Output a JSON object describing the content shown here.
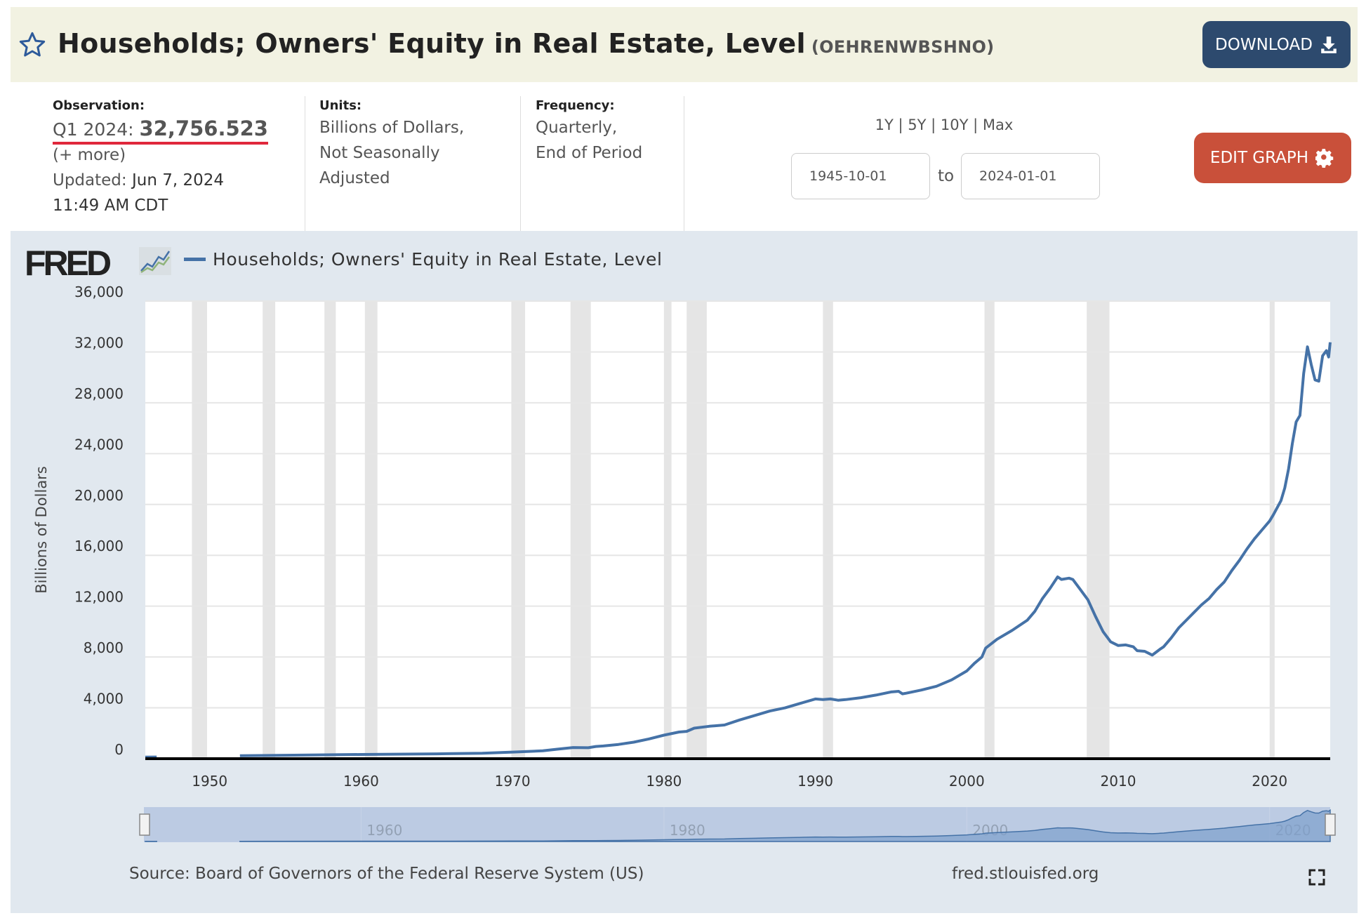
{
  "header": {
    "title": "Households; Owners' Equity in Real Estate, Level",
    "series_id": "(OEHRENWBSHNO)",
    "download_label": "DOWNLOAD"
  },
  "observation": {
    "label": "Observation:",
    "period": "Q1 2024:",
    "value": "32,756.523",
    "more": "(+ more)",
    "updated_label": "Updated:",
    "updated_date": "Jun 7, 2024",
    "updated_time": "11:49 AM CDT"
  },
  "units": {
    "label": "Units:",
    "lines": [
      "Billions of Dollars,",
      "Not Seasonally",
      "Adjusted"
    ]
  },
  "frequency": {
    "label": "Frequency:",
    "lines": [
      "Quarterly,",
      "End of Period"
    ]
  },
  "ranges": [
    "1Y",
    "5Y",
    "10Y",
    "Max"
  ],
  "date_range": {
    "start": "1945-10-01",
    "to": "to",
    "end": "2024-01-01"
  },
  "edit_graph_label": "EDIT GRAPH",
  "footer": {
    "source": "Source: Board of Governors of the Federal Reserve System (US)",
    "site": "fred.stlouisfed.org"
  },
  "colors": {
    "line": "#4572a7",
    "recession": "#e5e5e5",
    "download": "#2d4a6e",
    "edit": "#c9503a"
  },
  "chart_data": {
    "type": "line",
    "title": "Households; Owners' Equity in Real Estate, Level",
    "logo": "FRED",
    "legend": "Households; Owners' Equity in Real Estate, Level",
    "ylabel": "Billions of Dollars",
    "xlabel": "",
    "ylim": [
      0,
      36000
    ],
    "xlim": [
      1945.75,
      2024.0
    ],
    "yticks": [
      0,
      4000,
      8000,
      12000,
      16000,
      20000,
      24000,
      28000,
      32000,
      36000
    ],
    "ytick_labels": [
      "0",
      "4,000",
      "8,000",
      "12,000",
      "16,000",
      "20,000",
      "24,000",
      "28,000",
      "32,000",
      "36,000"
    ],
    "xticks": [
      1950,
      1960,
      1970,
      1980,
      1990,
      2000,
      2010,
      2020
    ],
    "navigator_ticks": [
      1960,
      1980,
      2000,
      2020
    ],
    "grid": true,
    "recessions": [
      [
        1948.83,
        1949.83
      ],
      [
        1953.5,
        1954.33
      ],
      [
        1957.58,
        1958.33
      ],
      [
        1960.25,
        1961.08
      ],
      [
        1969.92,
        1970.83
      ],
      [
        1973.83,
        1975.17
      ],
      [
        1980.0,
        1980.5
      ],
      [
        1981.5,
        1982.83
      ],
      [
        1990.5,
        1991.17
      ],
      [
        2001.17,
        2001.83
      ],
      [
        2007.92,
        2009.42
      ],
      [
        2020.0,
        2020.33
      ]
    ],
    "series": [
      {
        "name": "Households; Owners' Equity in Real Estate, Level",
        "points": [
          [
            1945.75,
            120
          ],
          [
            1946.5,
            130
          ],
          null,
          [
            1952.0,
            230
          ],
          [
            1955,
            270
          ],
          [
            1960,
            330
          ],
          [
            1965,
            380
          ],
          [
            1968,
            430
          ],
          [
            1970,
            520
          ],
          [
            1972,
            620
          ],
          [
            1973,
            750
          ],
          [
            1974,
            880
          ],
          [
            1975,
            860
          ],
          [
            1975.5,
            960
          ],
          [
            1976,
            1000
          ],
          [
            1977,
            1120
          ],
          [
            1978,
            1300
          ],
          [
            1979,
            1550
          ],
          [
            1980,
            1850
          ],
          [
            1981,
            2100
          ],
          [
            1981.5,
            2150
          ],
          [
            1982,
            2400
          ],
          [
            1983,
            2550
          ],
          [
            1984,
            2650
          ],
          [
            1985,
            3050
          ],
          [
            1986,
            3400
          ],
          [
            1987,
            3750
          ],
          [
            1988,
            4000
          ],
          [
            1989,
            4350
          ],
          [
            1990,
            4700
          ],
          [
            1990.5,
            4650
          ],
          [
            1991,
            4700
          ],
          [
            1991.5,
            4600
          ],
          [
            1992,
            4650
          ],
          [
            1993,
            4800
          ],
          [
            1994,
            5000
          ],
          [
            1995,
            5250
          ],
          [
            1995.5,
            5300
          ],
          [
            1995.75,
            5100
          ],
          [
            1996,
            5150
          ],
          [
            1997,
            5400
          ],
          [
            1998,
            5700
          ],
          [
            1999,
            6200
          ],
          [
            2000,
            6900
          ],
          [
            2000.5,
            7500
          ],
          [
            2001,
            8000
          ],
          [
            2001.25,
            8700
          ],
          [
            2002,
            9400
          ],
          [
            2003,
            10100
          ],
          [
            2004,
            10900
          ],
          [
            2004.5,
            11600
          ],
          [
            2005,
            12600
          ],
          [
            2005.5,
            13400
          ],
          [
            2006,
            14300
          ],
          [
            2006.25,
            14100
          ],
          [
            2006.75,
            14200
          ],
          [
            2007,
            14100
          ],
          [
            2007.5,
            13300
          ],
          [
            2008,
            12500
          ],
          [
            2008.5,
            11200
          ],
          [
            2009,
            10000
          ],
          [
            2009.5,
            9200
          ],
          [
            2010,
            8900
          ],
          [
            2010.5,
            8950
          ],
          [
            2011,
            8800
          ],
          [
            2011.25,
            8500
          ],
          [
            2011.75,
            8450
          ],
          [
            2012,
            8300
          ],
          [
            2012.25,
            8150
          ],
          [
            2012.75,
            8600
          ],
          [
            2013,
            8800
          ],
          [
            2013.5,
            9500
          ],
          [
            2014,
            10300
          ],
          [
            2014.5,
            10900
          ],
          [
            2015,
            11500
          ],
          [
            2015.5,
            12100
          ],
          [
            2016,
            12600
          ],
          [
            2016.5,
            13300
          ],
          [
            2017,
            13900
          ],
          [
            2017.5,
            14800
          ],
          [
            2018,
            15600
          ],
          [
            2018.5,
            16500
          ],
          [
            2019,
            17300
          ],
          [
            2019.5,
            18000
          ],
          [
            2020,
            18700
          ],
          [
            2020.25,
            19200
          ],
          [
            2020.75,
            20300
          ],
          [
            2021,
            21300
          ],
          [
            2021.25,
            22800
          ],
          [
            2021.5,
            24800
          ],
          [
            2021.75,
            26500
          ],
          [
            2022,
            27000
          ],
          [
            2022.25,
            30300
          ],
          [
            2022.5,
            32400
          ],
          [
            2022.75,
            31000
          ],
          [
            2023,
            29800
          ],
          [
            2023.25,
            29700
          ],
          [
            2023.5,
            31700
          ],
          [
            2023.75,
            32100
          ],
          [
            2023.9,
            31600
          ],
          [
            2024.0,
            32757
          ]
        ]
      }
    ]
  }
}
